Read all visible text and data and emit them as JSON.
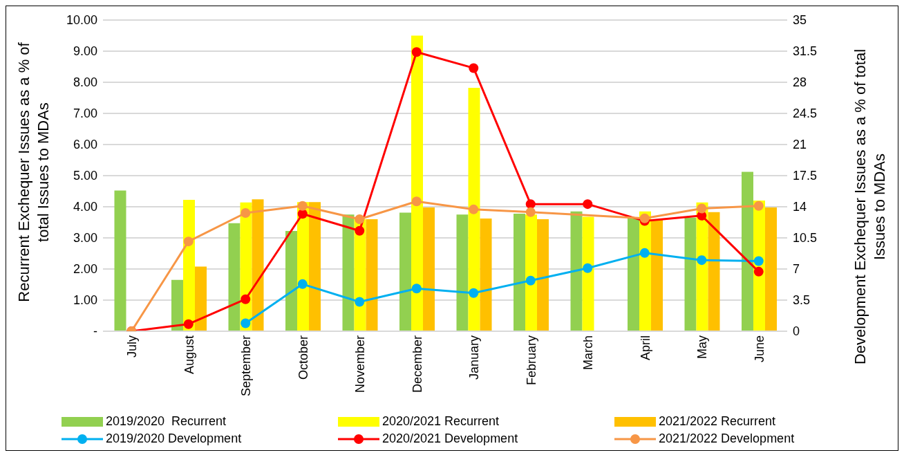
{
  "chart_data": {
    "type": "bar",
    "ylabel": "Recurrent Exchequer Issues as a % of total Issues to MDAs",
    "y2label": "Development Exchequer Issues as a % of total Issues to MDAs",
    "categories": [
      "July",
      "August",
      "September",
      "October",
      "November",
      "December",
      "January",
      "February",
      "March",
      "April",
      "May",
      "June"
    ],
    "series": [
      {
        "name": "2019/2020  Recurrent",
        "color": "#92d050",
        "values": [
          4.52,
          1.65,
          3.47,
          3.22,
          3.75,
          3.81,
          3.75,
          3.78,
          3.85,
          3.65,
          3.65,
          5.12
        ]
      },
      {
        "name": "2020/2021 Recurrent",
        "color": "#ffff00",
        "values": [
          null,
          4.22,
          4.14,
          4.15,
          3.6,
          9.5,
          7.82,
          3.75,
          3.68,
          3.85,
          4.14,
          4.2
        ]
      },
      {
        "name": "2021/2022 Recurrent",
        "color": "#ffc000",
        "values": [
          null,
          2.08,
          4.24,
          4.15,
          3.6,
          3.98,
          3.62,
          3.6,
          null,
          3.6,
          3.83,
          3.98
        ]
      },
      {
        "name": "2019/2020 Development",
        "type": "line",
        "axis": "y2",
        "color": "#00b0f0",
        "values": [
          null,
          null,
          0.9,
          5.3,
          3.3,
          4.8,
          4.3,
          5.7,
          7.1,
          8.8,
          8.0,
          7.9
        ]
      },
      {
        "name": "2020/2021 Development",
        "type": "line",
        "axis": "y2",
        "color": "#ff0000",
        "values": [
          0,
          0.8,
          3.6,
          13.2,
          11.3,
          31.4,
          29.6,
          14.3,
          14.3,
          12.4,
          13.0,
          6.7
        ]
      },
      {
        "name": "2021/2022 Development",
        "type": "line",
        "axis": "y2",
        "color": "#f79646",
        "values": [
          0,
          10.1,
          13.3,
          14.1,
          12.6,
          14.6,
          13.7,
          13.4,
          null,
          12.7,
          13.8,
          14.1
        ]
      }
    ],
    "ylim": [
      0,
      10
    ],
    "yticks": [
      {
        "value": 0,
        "label": "-"
      },
      {
        "value": 1,
        "label": "1.00"
      },
      {
        "value": 2,
        "label": "2.00"
      },
      {
        "value": 3,
        "label": "3.00"
      },
      {
        "value": 4,
        "label": "4.00"
      },
      {
        "value": 5,
        "label": "5.00"
      },
      {
        "value": 6,
        "label": "6.00"
      },
      {
        "value": 7,
        "label": "7.00"
      },
      {
        "value": 8,
        "label": "8.00"
      },
      {
        "value": 9,
        "label": "9.00"
      },
      {
        "value": 10,
        "label": "10.00"
      }
    ],
    "y2lim": [
      0,
      35
    ],
    "y2ticks": [
      0,
      3.5,
      7,
      10.5,
      14,
      17.5,
      21,
      24.5,
      28,
      31.5,
      35
    ],
    "grid": "y",
    "legend": "bottom",
    "marker": "circle",
    "line_style": "solid"
  }
}
